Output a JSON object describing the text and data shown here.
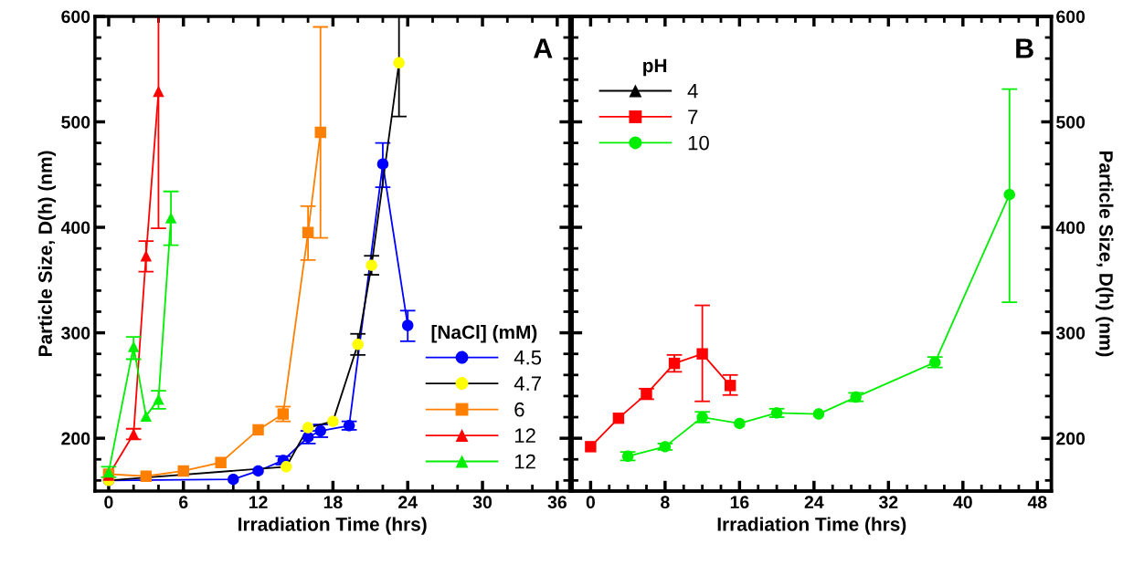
{
  "chart_data": [
    {
      "type": "line",
      "xlabel": "Irradiation Time (hrs)",
      "ylabel": "Particle Size, D(h) (nm)",
      "legend_title": "[NaCl] (mM)",
      "legend": "bottom right",
      "annotations": [
        "A"
      ],
      "xlim": [
        -1.1,
        37
      ],
      "xticks": [
        0,
        6,
        12,
        18,
        24,
        30,
        36
      ],
      "ylim": [
        150,
        600
      ],
      "yticks": [
        200,
        300,
        400,
        500,
        600
      ],
      "grid": false,
      "line_style": "solid",
      "series": [
        {
          "name": "4.5",
          "color": "#0000ff",
          "marker": "circle",
          "x": [
            0,
            10,
            12,
            14,
            16,
            17,
            19.3,
            22,
            24
          ],
          "values": [
            160,
            161,
            169,
            179,
            201,
            207,
            212,
            460,
            307
          ],
          "errors": [
            null,
            null,
            null,
            4,
            6,
            6,
            4,
            [
              438,
              480
            ],
            [
              292,
              321
            ]
          ]
        },
        {
          "name": "4.7",
          "color": "#000000",
          "colors": [
            "#ffff00",
            "#ffff00",
            "#ffff00",
            "#ffff00",
            "#ffff00",
            "#ffff00",
            "#ffff00"
          ],
          "marker": "circle",
          "x": [
            0,
            14.25,
            16,
            18,
            20,
            21.1,
            23.3
          ],
          "values": [
            160,
            173,
            210,
            216,
            289,
            364,
            556
          ],
          "errors": [
            null,
            null,
            null,
            null,
            10,
            9,
            [
              505,
              600
            ]
          ]
        },
        {
          "name": "6",
          "color": "#ff8000",
          "marker": "square",
          "x": [
            0,
            3,
            6,
            9,
            12,
            14,
            16,
            17
          ],
          "values": [
            166,
            164,
            169,
            177,
            208,
            223,
            395,
            490
          ],
          "errors": [
            null,
            null,
            null,
            null,
            null,
            7,
            [
              369,
              420
            ],
            [
              390,
              590
            ]
          ]
        },
        {
          "name": "12",
          "color": "#ff0000",
          "marker": "triangle",
          "x": [
            0,
            2,
            3,
            4
          ],
          "values": [
            165,
            204,
            373,
            529
          ],
          "errors": [
            null,
            5,
            [
              358,
              387
            ],
            [
              399,
              600
            ]
          ]
        },
        {
          "name": "12",
          "color": "#00ee00",
          "marker": "triangle",
          "x": [
            0,
            2,
            3,
            4,
            5
          ],
          "values": [
            168,
            287,
            221,
            237,
            409
          ],
          "errors": [
            5,
            [
              275,
              296
            ],
            null,
            [
              228,
              245
            ],
            [
              383,
              434
            ]
          ]
        }
      ]
    },
    {
      "type": "line",
      "xlabel": "Irradiation Time (hrs)",
      "y2label": "Particle Size, D(h) (nm)",
      "legend_title": "pH",
      "legend": "top left",
      "annotations": [
        "B"
      ],
      "xlim": [
        -2,
        49.5
      ],
      "xticks": [
        0,
        8,
        16,
        24,
        32,
        40,
        48
      ],
      "y2lim": [
        150,
        600
      ],
      "y2ticks": [
        200,
        300,
        400,
        500,
        600
      ],
      "grid": false,
      "line_style": "solid",
      "series": [
        {
          "name": "4",
          "color": "#000000",
          "marker": "triangle",
          "axis": "y2"
        },
        {
          "name": "7",
          "color": "#ff0000",
          "marker": "square",
          "axis": "y2",
          "x": [
            0,
            3,
            6,
            9,
            12,
            15
          ],
          "values": [
            192,
            219,
            242,
            271,
            280,
            250
          ],
          "errors": [
            null,
            null,
            5,
            8,
            [
              235,
              326
            ],
            [
              241,
              260
            ]
          ]
        },
        {
          "name": "10",
          "color": "#00ee00",
          "marker": "circle",
          "axis": "y2",
          "x": [
            4,
            8,
            12,
            16,
            20,
            24.5,
            28.5,
            37,
            45
          ],
          "values": [
            183,
            192,
            220,
            214,
            224,
            223,
            239,
            272,
            431
          ],
          "errors": [
            4,
            3,
            5,
            null,
            4,
            null,
            4,
            5,
            [
              329,
              531
            ]
          ]
        }
      ]
    }
  ]
}
